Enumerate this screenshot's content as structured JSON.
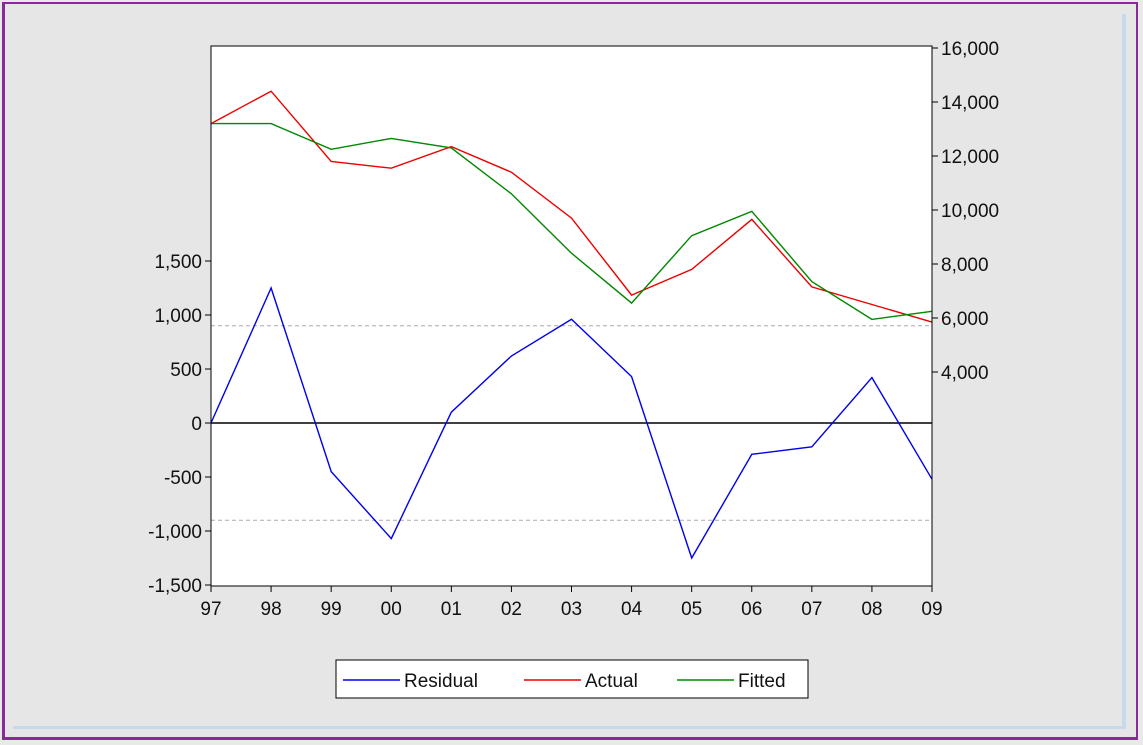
{
  "chart_data": {
    "type": "line",
    "categories": [
      "97",
      "98",
      "99",
      "00",
      "01",
      "02",
      "03",
      "04",
      "05",
      "06",
      "07",
      "08",
      "09"
    ],
    "left_axis": {
      "ylim": [
        -1500,
        1500
      ],
      "ticks": [
        -1500,
        -1000,
        -500,
        0,
        500,
        1000,
        1500
      ],
      "tick_labels": [
        "-1,500",
        "-1,000",
        "-500",
        "0",
        "500",
        "1,000",
        "1,500"
      ],
      "reference_lines": [
        -900,
        900
      ]
    },
    "right_axis": {
      "ylim": [
        2000,
        16000
      ],
      "ticks": [
        4000,
        6000,
        8000,
        10000,
        12000,
        14000,
        16000
      ],
      "tick_labels": [
        "4,000",
        "6,000",
        "8,000",
        "10,000",
        "12,000",
        "14,000",
        "16,000"
      ]
    },
    "series": [
      {
        "name": "Residual",
        "axis": "left",
        "color": "#0000ee",
        "values": [
          0,
          1250,
          -450,
          -1070,
          100,
          620,
          960,
          430,
          -1250,
          -290,
          -220,
          420,
          -520
        ]
      },
      {
        "name": "Actual",
        "axis": "right",
        "color": "#ee0000",
        "values": [
          13200,
          14400,
          11800,
          11550,
          12350,
          11400,
          9700,
          6850,
          7800,
          9650,
          7150,
          6500,
          5850
        ]
      },
      {
        "name": "Fitted",
        "axis": "right",
        "color": "#008800",
        "values": [
          13200,
          13200,
          12250,
          12650,
          12300,
          10600,
          8400,
          6550,
          9050,
          9950,
          7350,
          5950,
          6250
        ]
      }
    ],
    "grid": false,
    "legend_position": "bottom-center"
  }
}
